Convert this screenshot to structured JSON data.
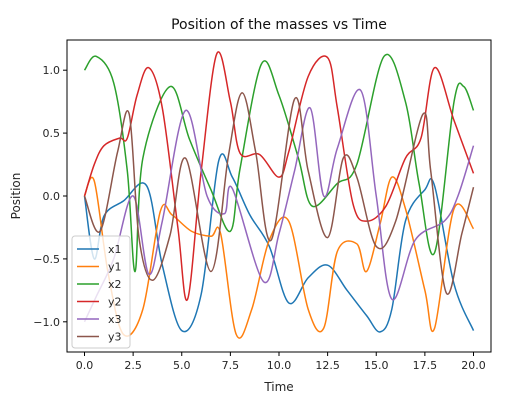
{
  "chart_data": {
    "type": "line",
    "title": "Position of the masses vs Time",
    "xlabel": "Time",
    "ylabel": "Position",
    "xlim": [
      -0.9,
      20.9
    ],
    "ylim": [
      -1.24,
      1.24
    ],
    "xticks": [
      0.0,
      2.5,
      5.0,
      7.5,
      10.0,
      12.5,
      15.0,
      17.5,
      20.0
    ],
    "xtick_labels": [
      "0.0",
      "2.5",
      "5.0",
      "7.5",
      "10.0",
      "12.5",
      "15.0",
      "17.5",
      "20.0"
    ],
    "yticks": [
      -1.0,
      -0.5,
      0.0,
      0.5,
      1.0
    ],
    "ytick_labels": [
      "−1.0",
      "−0.5",
      "0.0",
      "0.5",
      "1.0"
    ],
    "grid": false,
    "legend_position": "bottom-left",
    "series": [
      {
        "name": "x1",
        "color": "#1f77b4",
        "points": [
          [
            0,
            0
          ],
          [
            0.5,
            -0.5
          ],
          [
            1.0,
            -0.16
          ],
          [
            2.0,
            -0.04
          ],
          [
            3.2,
            0.08
          ],
          [
            4.0,
            -0.55
          ],
          [
            5.0,
            -1.07
          ],
          [
            6.0,
            -0.78
          ],
          [
            6.9,
            0.28
          ],
          [
            7.6,
            0.15
          ],
          [
            8.5,
            -0.15
          ],
          [
            9.5,
            -0.4
          ],
          [
            10.5,
            -0.85
          ],
          [
            11.5,
            -0.65
          ],
          [
            12.5,
            -0.55
          ],
          [
            13.5,
            -0.75
          ],
          [
            14.5,
            -0.95
          ],
          [
            15.2,
            -1.08
          ],
          [
            15.8,
            -0.9
          ],
          [
            16.5,
            -0.2
          ],
          [
            17.5,
            0.05
          ],
          [
            18.0,
            0.08
          ],
          [
            19.0,
            -0.7
          ],
          [
            20.0,
            -1.07
          ]
        ]
      },
      {
        "name": "y1",
        "color": "#ff7f0e",
        "points": [
          [
            0,
            0
          ],
          [
            0.5,
            0.12
          ],
          [
            1.2,
            -0.6
          ],
          [
            2.0,
            -1.1
          ],
          [
            3.0,
            -0.9
          ],
          [
            3.9,
            -0.12
          ],
          [
            4.5,
            -0.15
          ],
          [
            5.5,
            -0.28
          ],
          [
            6.5,
            -0.32
          ],
          [
            7.0,
            -0.3
          ],
          [
            7.8,
            -1.1
          ],
          [
            8.6,
            -0.9
          ],
          [
            9.5,
            -0.35
          ],
          [
            10.5,
            -0.2
          ],
          [
            11.5,
            -0.9
          ],
          [
            12.3,
            -1.05
          ],
          [
            13.0,
            -0.44
          ],
          [
            14.0,
            -0.38
          ],
          [
            14.5,
            -0.6
          ],
          [
            15.2,
            -0.22
          ],
          [
            15.8,
            0.15
          ],
          [
            16.5,
            -0.1
          ],
          [
            17.5,
            -0.75
          ],
          [
            18.0,
            -1.05
          ],
          [
            19.0,
            -0.1
          ],
          [
            20.0,
            -0.26
          ]
        ]
      },
      {
        "name": "x2",
        "color": "#2ca02c",
        "points": [
          [
            0,
            1.0
          ],
          [
            0.6,
            1.11
          ],
          [
            1.5,
            0.9
          ],
          [
            2.2,
            0.2
          ],
          [
            2.6,
            -0.6
          ],
          [
            3.0,
            0.3
          ],
          [
            4.4,
            0.87
          ],
          [
            5.4,
            0.45
          ],
          [
            6.5,
            0.05
          ],
          [
            7.5,
            -0.28
          ],
          [
            8.0,
            0.22
          ],
          [
            9.1,
            1.05
          ],
          [
            10.0,
            0.8
          ],
          [
            11.0,
            0.3
          ],
          [
            11.7,
            -0.08
          ],
          [
            13.0,
            0.1
          ],
          [
            14.0,
            0.25
          ],
          [
            15.4,
            1.11
          ],
          [
            16.5,
            0.75
          ],
          [
            17.2,
            0.1
          ],
          [
            18.0,
            -0.45
          ],
          [
            19.0,
            0.75
          ],
          [
            19.5,
            0.87
          ],
          [
            20.0,
            0.68
          ]
        ]
      },
      {
        "name": "y2",
        "color": "#d62728",
        "points": [
          [
            0,
            0
          ],
          [
            0.5,
            0.25
          ],
          [
            1.0,
            0.4
          ],
          [
            1.8,
            0.46
          ],
          [
            2.2,
            0.46
          ],
          [
            2.7,
            0.8
          ],
          [
            3.3,
            1.02
          ],
          [
            4.0,
            0.7
          ],
          [
            4.8,
            -0.25
          ],
          [
            5.3,
            -0.82
          ],
          [
            6.0,
            0.2
          ],
          [
            6.8,
            1.13
          ],
          [
            7.5,
            0.75
          ],
          [
            8.0,
            0.34
          ],
          [
            9.0,
            0.33
          ],
          [
            10.0,
            0.15
          ],
          [
            10.5,
            0.35
          ],
          [
            11.5,
            0.95
          ],
          [
            12.5,
            1.1
          ],
          [
            13.0,
            0.7
          ],
          [
            13.8,
            -0.06
          ],
          [
            14.5,
            -0.2
          ],
          [
            15.5,
            -0.08
          ],
          [
            16.5,
            0.3
          ],
          [
            17.3,
            0.46
          ],
          [
            18.0,
            1.02
          ],
          [
            19.0,
            0.6
          ],
          [
            20.0,
            0.18
          ]
        ]
      },
      {
        "name": "x3",
        "color": "#9467bd",
        "points": [
          [
            0,
            -1.0
          ],
          [
            0.6,
            -0.8
          ],
          [
            1.5,
            -0.5
          ],
          [
            2.5,
            0.0
          ],
          [
            3.3,
            -0.62
          ],
          [
            4.0,
            -0.2
          ],
          [
            5.2,
            0.68
          ],
          [
            6.3,
            0.0
          ],
          [
            7.2,
            -0.14
          ],
          [
            7.6,
            0.06
          ],
          [
            9.2,
            -0.68
          ],
          [
            10.0,
            -0.3
          ],
          [
            10.8,
            0.2
          ],
          [
            11.6,
            0.7
          ],
          [
            12.3,
            0.0
          ],
          [
            13.0,
            0.38
          ],
          [
            14.2,
            0.84
          ],
          [
            15.0,
            0.0
          ],
          [
            15.8,
            -0.82
          ],
          [
            17.0,
            -0.35
          ],
          [
            18.5,
            -0.2
          ],
          [
            19.2,
            0.0
          ],
          [
            20.0,
            0.4
          ]
        ]
      },
      {
        "name": "y3",
        "color": "#8c564b",
        "points": [
          [
            0,
            0
          ],
          [
            0.8,
            -0.28
          ],
          [
            1.7,
            0.35
          ],
          [
            2.3,
            0.65
          ],
          [
            2.8,
            -0.33
          ],
          [
            3.5,
            -0.67
          ],
          [
            4.4,
            -0.31
          ],
          [
            5.2,
            0.3
          ],
          [
            6.5,
            -0.6
          ],
          [
            7.4,
            0.32
          ],
          [
            8.1,
            0.82
          ],
          [
            8.8,
            0.35
          ],
          [
            9.6,
            -0.35
          ],
          [
            10.8,
            0.77
          ],
          [
            11.5,
            0.2
          ],
          [
            12.5,
            -0.33
          ],
          [
            13.3,
            0.3
          ],
          [
            14.0,
            0.15
          ],
          [
            15.0,
            -0.4
          ],
          [
            16.0,
            -0.2
          ],
          [
            17.4,
            0.65
          ],
          [
            17.8,
            0.2
          ],
          [
            18.6,
            -0.77
          ],
          [
            19.4,
            -0.3
          ],
          [
            20.0,
            0.07
          ]
        ]
      }
    ]
  }
}
